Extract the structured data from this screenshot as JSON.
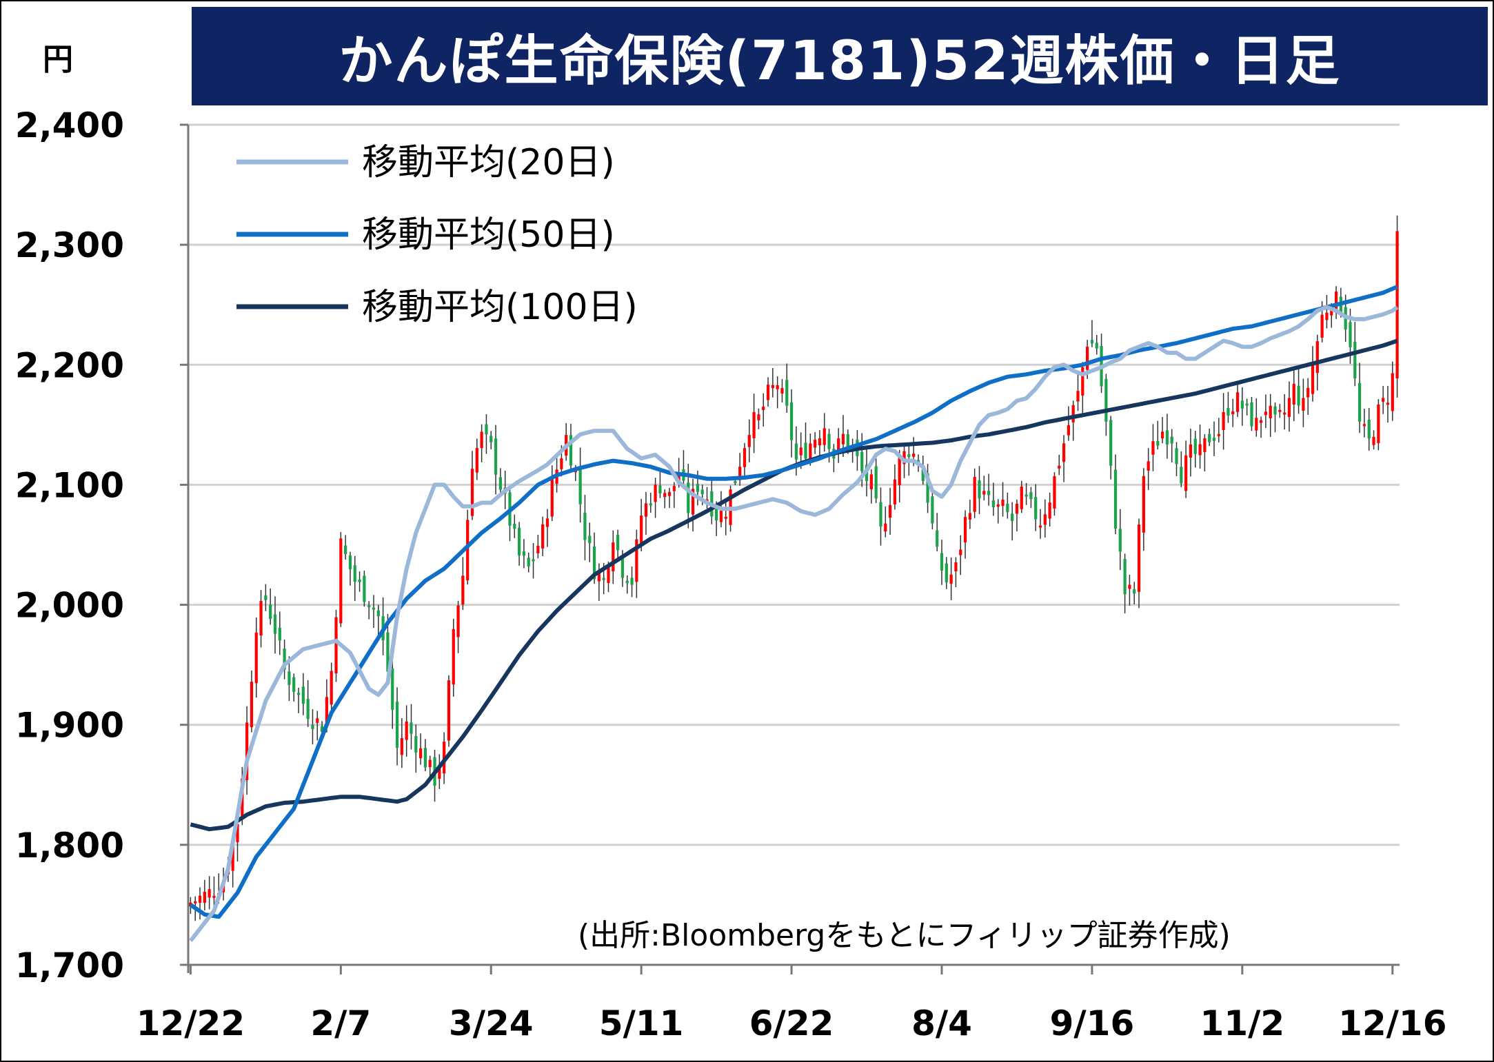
{
  "title": "かんぽ生命保険(7181)52週株価・日足",
  "unit": "円",
  "source": "(出所:Bloombergをもとにフィリップ証券作成)",
  "colors": {
    "title_bg": "#0f2462",
    "up": "#ff0000",
    "down": "#1aa34a",
    "ma20": "#9bb7d9",
    "ma50": "#0f6fc6",
    "ma100": "#17365d",
    "grid": "#d0d0d0"
  },
  "chart_data": {
    "type": "candlestick",
    "ylim": [
      1700,
      2400
    ],
    "yticks": [
      "2,400",
      "2,300",
      "2,200",
      "2,100",
      "2,000",
      "1,900",
      "1,800",
      "1,700"
    ],
    "ytick_values": [
      2400,
      2300,
      2200,
      2100,
      2000,
      1900,
      1800,
      1700
    ],
    "xticks": [
      "12/22",
      "2/7",
      "3/24",
      "5/11",
      "6/22",
      "8/4",
      "9/16",
      "11/2",
      "12/16"
    ],
    "xtick_index": [
      0,
      32,
      64,
      96,
      128,
      160,
      192,
      224,
      256
    ],
    "trading_days": 258,
    "legend": [
      "移動平均(20日)",
      "移動平均(50日)",
      "移動平均(100日)"
    ],
    "close_anchors": [
      [
        0,
        1752
      ],
      [
        4,
        1760
      ],
      [
        7,
        1770
      ],
      [
        10,
        1820
      ],
      [
        12,
        1900
      ],
      [
        14,
        1985
      ],
      [
        16,
        2005
      ],
      [
        18,
        1980
      ],
      [
        20,
        1945
      ],
      [
        23,
        1925
      ],
      [
        26,
        1905
      ],
      [
        28,
        1900
      ],
      [
        30,
        1945
      ],
      [
        32,
        2050
      ],
      [
        35,
        2020
      ],
      [
        38,
        2005
      ],
      [
        40,
        1990
      ],
      [
        42,
        1945
      ],
      [
        44,
        1880
      ],
      [
        46,
        1900
      ],
      [
        50,
        1870
      ],
      [
        52,
        1855
      ],
      [
        54,
        1880
      ],
      [
        56,
        1980
      ],
      [
        58,
        2025
      ],
      [
        60,
        2120
      ],
      [
        62,
        2140
      ],
      [
        64,
        2130
      ],
      [
        66,
        2100
      ],
      [
        68,
        2070
      ],
      [
        70,
        2040
      ],
      [
        72,
        2030
      ],
      [
        75,
        2060
      ],
      [
        77,
        2100
      ],
      [
        80,
        2140
      ],
      [
        82,
        2110
      ],
      [
        84,
        2060
      ],
      [
        86,
        2030
      ],
      [
        88,
        2020
      ],
      [
        90,
        2060
      ],
      [
        92,
        2030
      ],
      [
        94,
        2020
      ],
      [
        96,
        2075
      ],
      [
        98,
        2090
      ],
      [
        100,
        2100
      ],
      [
        102,
        2090
      ],
      [
        104,
        2110
      ],
      [
        106,
        2080
      ],
      [
        108,
        2100
      ],
      [
        110,
        2090
      ],
      [
        112,
        2075
      ],
      [
        114,
        2080
      ],
      [
        117,
        2120
      ],
      [
        119,
        2150
      ],
      [
        121,
        2155
      ],
      [
        123,
        2175
      ],
      [
        125,
        2185
      ],
      [
        127,
        2160
      ],
      [
        129,
        2120
      ],
      [
        131,
        2130
      ],
      [
        133,
        2140
      ],
      [
        135,
        2150
      ],
      [
        137,
        2125
      ],
      [
        139,
        2140
      ],
      [
        141,
        2130
      ],
      [
        143,
        2110
      ],
      [
        145,
        2100
      ],
      [
        147,
        2060
      ],
      [
        149,
        2090
      ],
      [
        151,
        2120
      ],
      [
        153,
        2130
      ],
      [
        155,
        2120
      ],
      [
        157,
        2090
      ],
      [
        159,
        2040
      ],
      [
        161,
        2020
      ],
      [
        163,
        2030
      ],
      [
        165,
        2070
      ],
      [
        167,
        2100
      ],
      [
        169,
        2090
      ],
      [
        171,
        2080
      ],
      [
        173,
        2080
      ],
      [
        175,
        2070
      ],
      [
        177,
        2090
      ],
      [
        179,
        2080
      ],
      [
        181,
        2070
      ],
      [
        183,
        2090
      ],
      [
        185,
        2120
      ],
      [
        187,
        2150
      ],
      [
        189,
        2175
      ],
      [
        191,
        2220
      ],
      [
        193,
        2215
      ],
      [
        195,
        2150
      ],
      [
        197,
        2070
      ],
      [
        199,
        2010
      ],
      [
        201,
        2010
      ],
      [
        203,
        2110
      ],
      [
        205,
        2130
      ],
      [
        207,
        2145
      ],
      [
        209,
        2140
      ],
      [
        211,
        2110
      ],
      [
        213,
        2125
      ],
      [
        215,
        2125
      ],
      [
        217,
        2140
      ],
      [
        219,
        2145
      ],
      [
        221,
        2165
      ],
      [
        223,
        2170
      ],
      [
        225,
        2160
      ],
      [
        227,
        2150
      ],
      [
        229,
        2165
      ],
      [
        231,
        2150
      ],
      [
        233,
        2160
      ],
      [
        235,
        2180
      ],
      [
        237,
        2165
      ],
      [
        239,
        2200
      ],
      [
        241,
        2240
      ],
      [
        243,
        2255
      ],
      [
        245,
        2250
      ],
      [
        247,
        2220
      ],
      [
        249,
        2150
      ],
      [
        251,
        2135
      ],
      [
        253,
        2160
      ],
      [
        255,
        2175
      ],
      [
        256,
        2190
      ],
      [
        257,
        2310
      ]
    ],
    "ma20_anchors": [
      [
        0,
        1720
      ],
      [
        5,
        1745
      ],
      [
        8,
        1780
      ],
      [
        12,
        1870
      ],
      [
        16,
        1920
      ],
      [
        20,
        1950
      ],
      [
        24,
        1963
      ],
      [
        28,
        1967
      ],
      [
        31,
        1970
      ],
      [
        34,
        1960
      ],
      [
        36,
        1945
      ],
      [
        38,
        1930
      ],
      [
        40,
        1925
      ],
      [
        42,
        1935
      ],
      [
        44,
        1990
      ],
      [
        46,
        2030
      ],
      [
        48,
        2060
      ],
      [
        50,
        2080
      ],
      [
        52,
        2100
      ],
      [
        54,
        2100
      ],
      [
        56,
        2090
      ],
      [
        58,
        2082
      ],
      [
        60,
        2082
      ],
      [
        62,
        2085
      ],
      [
        64,
        2085
      ],
      [
        67,
        2095
      ],
      [
        70,
        2103
      ],
      [
        74,
        2112
      ],
      [
        76,
        2117
      ],
      [
        80,
        2132
      ],
      [
        83,
        2142
      ],
      [
        86,
        2145
      ],
      [
        90,
        2145
      ],
      [
        93,
        2130
      ],
      [
        96,
        2122
      ],
      [
        99,
        2125
      ],
      [
        102,
        2115
      ],
      [
        104,
        2102
      ],
      [
        107,
        2092
      ],
      [
        110,
        2085
      ],
      [
        113,
        2080
      ],
      [
        116,
        2080
      ],
      [
        118,
        2082
      ],
      [
        121,
        2085
      ],
      [
        124,
        2088
      ],
      [
        127,
        2085
      ],
      [
        130,
        2078
      ],
      [
        133,
        2075
      ],
      [
        136,
        2080
      ],
      [
        139,
        2092
      ],
      [
        142,
        2102
      ],
      [
        144,
        2112
      ],
      [
        146,
        2125
      ],
      [
        148,
        2130
      ],
      [
        150,
        2128
      ],
      [
        152,
        2120
      ],
      [
        154,
        2120
      ],
      [
        156,
        2115
      ],
      [
        158,
        2095
      ],
      [
        160,
        2090
      ],
      [
        162,
        2100
      ],
      [
        164,
        2120
      ],
      [
        166,
        2135
      ],
      [
        168,
        2150
      ],
      [
        170,
        2158
      ],
      [
        172,
        2160
      ],
      [
        174,
        2163
      ],
      [
        176,
        2170
      ],
      [
        178,
        2172
      ],
      [
        180,
        2180
      ],
      [
        182,
        2190
      ],
      [
        184,
        2198
      ],
      [
        186,
        2200
      ],
      [
        188,
        2195
      ],
      [
        190,
        2192
      ],
      [
        192,
        2195
      ],
      [
        194,
        2198
      ],
      [
        196,
        2202
      ],
      [
        198,
        2205
      ],
      [
        200,
        2212
      ],
      [
        202,
        2215
      ],
      [
        204,
        2218
      ],
      [
        206,
        2215
      ],
      [
        208,
        2210
      ],
      [
        210,
        2210
      ],
      [
        212,
        2205
      ],
      [
        214,
        2205
      ],
      [
        216,
        2210
      ],
      [
        218,
        2215
      ],
      [
        220,
        2220
      ],
      [
        222,
        2218
      ],
      [
        224,
        2215
      ],
      [
        226,
        2215
      ],
      [
        228,
        2218
      ],
      [
        230,
        2222
      ],
      [
        232,
        2225
      ],
      [
        234,
        2228
      ],
      [
        236,
        2232
      ],
      [
        238,
        2238
      ],
      [
        240,
        2245
      ],
      [
        242,
        2248
      ],
      [
        244,
        2245
      ],
      [
        246,
        2240
      ],
      [
        248,
        2238
      ],
      [
        250,
        2238
      ],
      [
        252,
        2240
      ],
      [
        254,
        2242
      ],
      [
        256,
        2245
      ],
      [
        257,
        2248
      ]
    ],
    "ma50_anchors": [
      [
        0,
        1750
      ],
      [
        3,
        1742
      ],
      [
        6,
        1740
      ],
      [
        10,
        1760
      ],
      [
        14,
        1790
      ],
      [
        18,
        1810
      ],
      [
        22,
        1830
      ],
      [
        26,
        1870
      ],
      [
        30,
        1910
      ],
      [
        34,
        1935
      ],
      [
        38,
        1960
      ],
      [
        42,
        1985
      ],
      [
        46,
        2005
      ],
      [
        50,
        2020
      ],
      [
        54,
        2030
      ],
      [
        58,
        2045
      ],
      [
        62,
        2060
      ],
      [
        66,
        2072
      ],
      [
        70,
        2085
      ],
      [
        74,
        2100
      ],
      [
        78,
        2108
      ],
      [
        82,
        2113
      ],
      [
        86,
        2117
      ],
      [
        90,
        2120
      ],
      [
        94,
        2118
      ],
      [
        98,
        2115
      ],
      [
        102,
        2110
      ],
      [
        106,
        2108
      ],
      [
        110,
        2105
      ],
      [
        114,
        2105
      ],
      [
        118,
        2106
      ],
      [
        122,
        2108
      ],
      [
        126,
        2112
      ],
      [
        130,
        2117
      ],
      [
        134,
        2122
      ],
      [
        138,
        2128
      ],
      [
        142,
        2133
      ],
      [
        146,
        2138
      ],
      [
        150,
        2145
      ],
      [
        154,
        2152
      ],
      [
        158,
        2160
      ],
      [
        162,
        2170
      ],
      [
        166,
        2178
      ],
      [
        170,
        2185
      ],
      [
        174,
        2190
      ],
      [
        178,
        2192
      ],
      [
        182,
        2195
      ],
      [
        186,
        2197
      ],
      [
        190,
        2200
      ],
      [
        194,
        2205
      ],
      [
        198,
        2208
      ],
      [
        202,
        2212
      ],
      [
        206,
        2215
      ],
      [
        210,
        2218
      ],
      [
        214,
        2222
      ],
      [
        218,
        2226
      ],
      [
        222,
        2230
      ],
      [
        226,
        2232
      ],
      [
        230,
        2236
      ],
      [
        234,
        2240
      ],
      [
        238,
        2244
      ],
      [
        242,
        2248
      ],
      [
        246,
        2252
      ],
      [
        250,
        2256
      ],
      [
        254,
        2260
      ],
      [
        257,
        2265
      ]
    ],
    "ma100_anchors": [
      [
        0,
        1817
      ],
      [
        4,
        1813
      ],
      [
        8,
        1815
      ],
      [
        12,
        1825
      ],
      [
        16,
        1832
      ],
      [
        20,
        1835
      ],
      [
        24,
        1836
      ],
      [
        28,
        1838
      ],
      [
        32,
        1840
      ],
      [
        36,
        1840
      ],
      [
        40,
        1838
      ],
      [
        44,
        1836
      ],
      [
        46,
        1838
      ],
      [
        50,
        1850
      ],
      [
        54,
        1870
      ],
      [
        58,
        1890
      ],
      [
        62,
        1912
      ],
      [
        66,
        1935
      ],
      [
        70,
        1958
      ],
      [
        74,
        1978
      ],
      [
        78,
        1995
      ],
      [
        82,
        2010
      ],
      [
        86,
        2025
      ],
      [
        90,
        2035
      ],
      [
        94,
        2045
      ],
      [
        98,
        2055
      ],
      [
        102,
        2062
      ],
      [
        106,
        2070
      ],
      [
        110,
        2078
      ],
      [
        114,
        2087
      ],
      [
        118,
        2096
      ],
      [
        122,
        2104
      ],
      [
        126,
        2112
      ],
      [
        130,
        2118
      ],
      [
        134,
        2123
      ],
      [
        138,
        2127
      ],
      [
        142,
        2130
      ],
      [
        146,
        2132
      ],
      [
        150,
        2133
      ],
      [
        154,
        2134
      ],
      [
        158,
        2135
      ],
      [
        162,
        2137
      ],
      [
        166,
        2140
      ],
      [
        170,
        2142
      ],
      [
        174,
        2145
      ],
      [
        178,
        2148
      ],
      [
        182,
        2152
      ],
      [
        186,
        2155
      ],
      [
        190,
        2158
      ],
      [
        194,
        2161
      ],
      [
        198,
        2164
      ],
      [
        202,
        2167
      ],
      [
        206,
        2170
      ],
      [
        210,
        2173
      ],
      [
        214,
        2176
      ],
      [
        218,
        2180
      ],
      [
        222,
        2184
      ],
      [
        226,
        2188
      ],
      [
        230,
        2192
      ],
      [
        234,
        2196
      ],
      [
        238,
        2200
      ],
      [
        242,
        2204
      ],
      [
        246,
        2208
      ],
      [
        250,
        2212
      ],
      [
        254,
        2216
      ],
      [
        257,
        2220
      ]
    ]
  }
}
